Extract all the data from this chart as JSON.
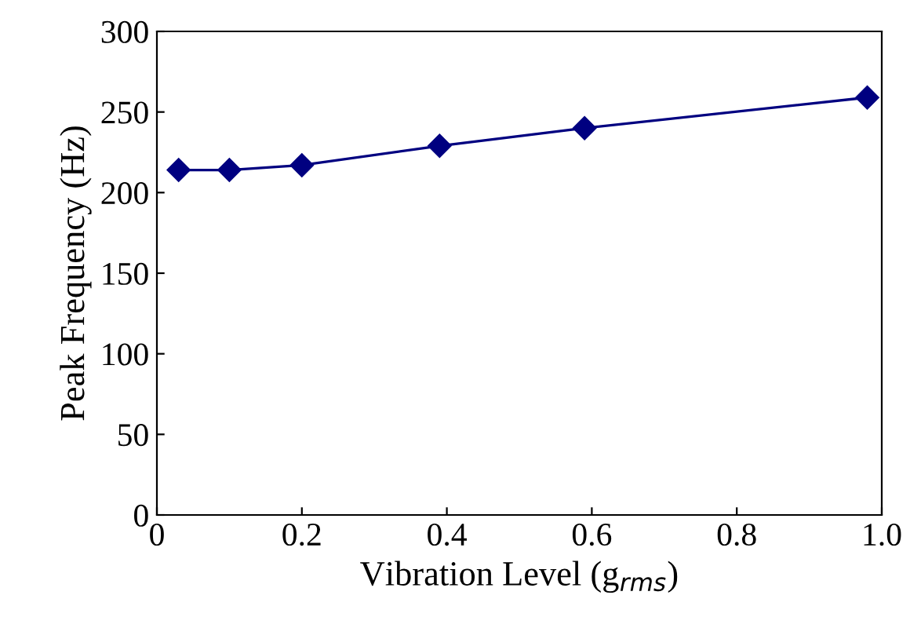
{
  "chart_data": {
    "type": "line",
    "xlabel": "Vibration Level (g$_{rms}$)",
    "ylabel": "Peak Frequency (Hz)",
    "x": [
      0.03,
      0.1,
      0.2,
      0.39,
      0.59,
      0.98
    ],
    "series": [
      {
        "color": "#000080",
        "values": [
          214,
          214,
          217,
          229,
          240,
          259
        ]
      }
    ],
    "xlim": [
      0,
      1.0
    ],
    "ylim": [
      0,
      300
    ],
    "xticks": [
      0,
      0.2,
      0.4,
      0.6,
      0.8,
      {
        "value": 1.0,
        "label": "1.0"
      }
    ],
    "yticks": [
      0,
      50,
      100,
      150,
      200,
      250,
      300
    ],
    "marker": "diamond",
    "line_style": "solid",
    "grid": false,
    "legend": false
  }
}
